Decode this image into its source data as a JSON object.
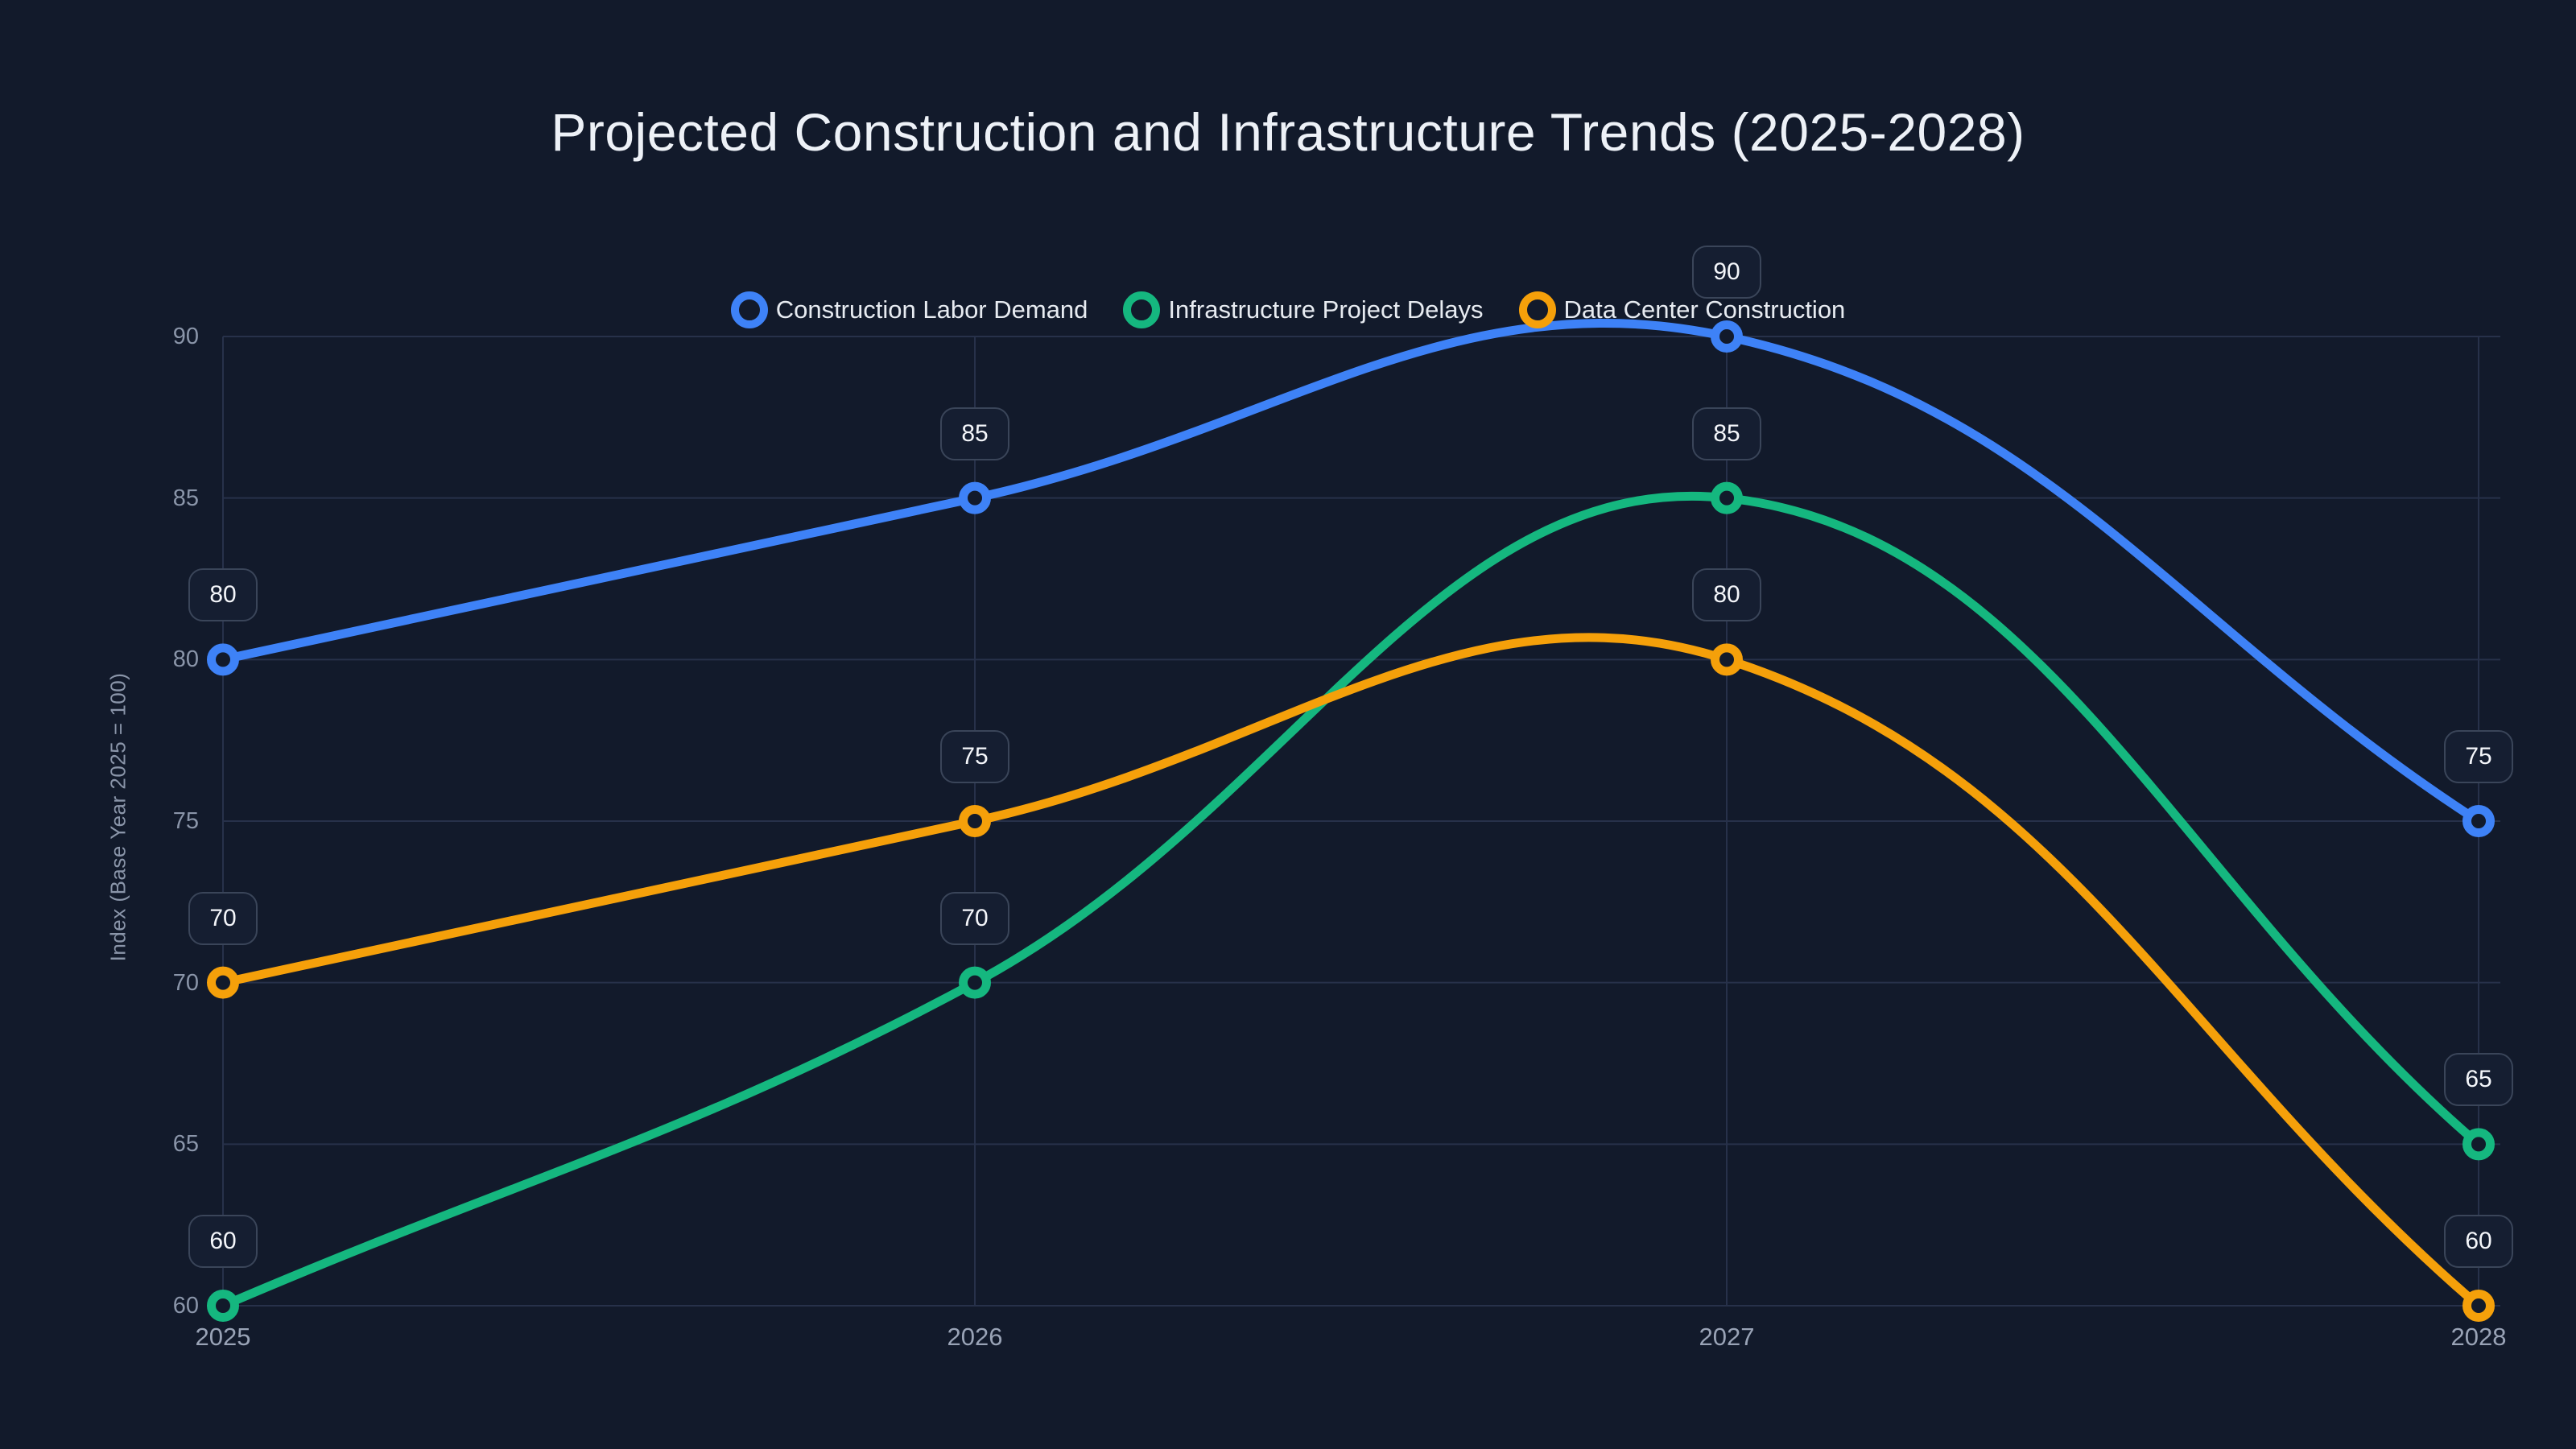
{
  "chart_data": {
    "type": "line",
    "title": "Projected Construction and Infrastructure Trends (2025-2028)",
    "xlabel": "",
    "ylabel": "Index (Base Year 2025 = 100)",
    "categories": [
      "2025",
      "2026",
      "2027",
      "2028"
    ],
    "y_ticks": [
      60,
      65,
      70,
      75,
      80,
      85,
      90
    ],
    "ylim": [
      60,
      90
    ],
    "grid": true,
    "legend_position": "top-center",
    "curve": "smooth",
    "point_labels_visible": true,
    "series": [
      {
        "name": "Construction Labor Demand",
        "color": "#3e82f7",
        "values": [
          80,
          85,
          90,
          75
        ]
      },
      {
        "name": "Infrastructure Project Delays",
        "color": "#15b77f",
        "values": [
          60,
          70,
          85,
          65
        ]
      },
      {
        "name": "Data Center Construction",
        "color": "#f5a00a",
        "values": [
          70,
          75,
          80,
          60
        ]
      }
    ]
  },
  "theme": {
    "background": "#121a2b",
    "grid_color": "#27314a",
    "title_color": "#edf1f7",
    "tick_color": "#8a95a9",
    "legend_text_color": "#e7ebf1",
    "label_box_bg": "#151e31",
    "label_box_border": "#3a4559",
    "label_box_text": "#f4f6fa"
  }
}
